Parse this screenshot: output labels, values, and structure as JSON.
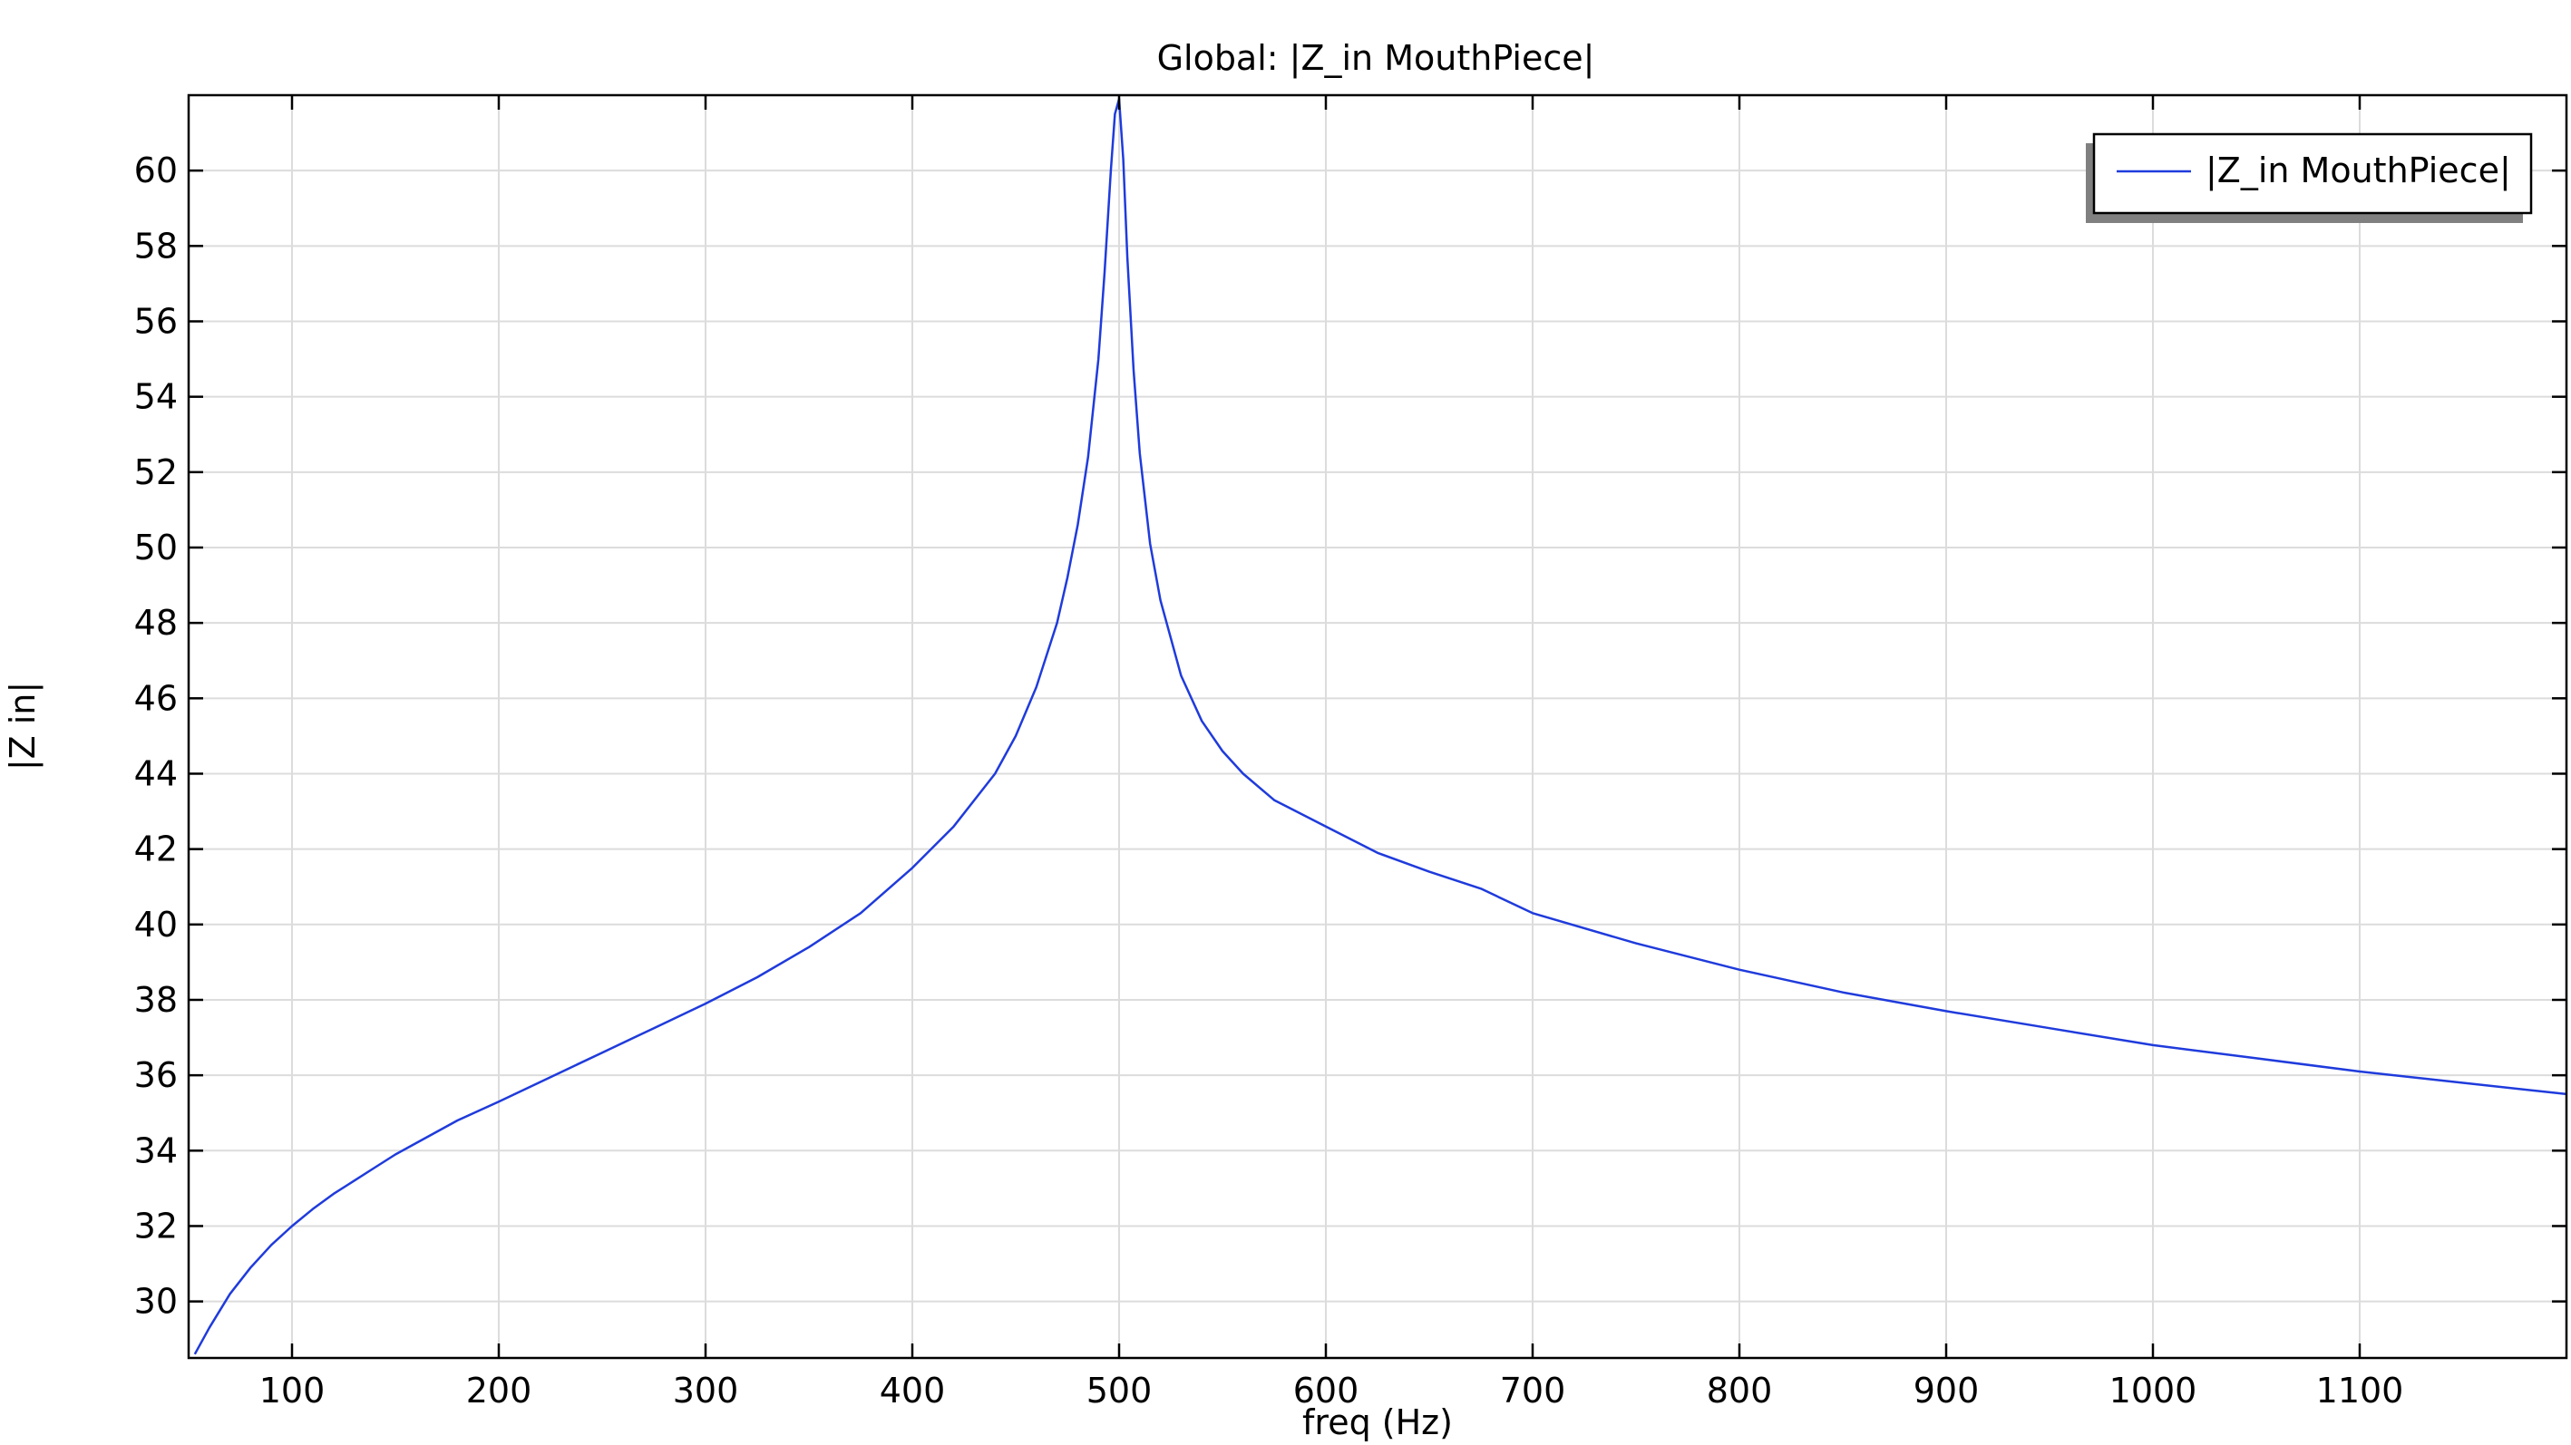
{
  "chart_data": {
    "type": "line",
    "title": "Global: |Z_in MouthPiece|",
    "xlabel": "freq (Hz)",
    "ylabel": "|Z in|",
    "xlim": [
      50,
      1200
    ],
    "ylim": [
      28.5,
      62
    ],
    "xticks": [
      100,
      200,
      300,
      400,
      500,
      600,
      700,
      800,
      900,
      1000,
      1100
    ],
    "yticks": [
      30,
      32,
      34,
      36,
      38,
      40,
      42,
      44,
      46,
      48,
      50,
      52,
      54,
      56,
      58,
      60
    ],
    "grid": true,
    "legend": {
      "position": "top-right"
    },
    "colors": {
      "line": "#1f3bdc",
      "grid": "#dcdcdc",
      "axis": "#000000"
    },
    "series": [
      {
        "name": "|Z_in MouthPiece|",
        "x": [
          53,
          60,
          70,
          80,
          90,
          100,
          110,
          120,
          130,
          140,
          150,
          160,
          170,
          180,
          190,
          200,
          225,
          250,
          275,
          300,
          325,
          350,
          375,
          400,
          420,
          440,
          450,
          460,
          470,
          475,
          480,
          485,
          490,
          493,
          496,
          498,
          500,
          502,
          504,
          507,
          510,
          515,
          520,
          530,
          540,
          550,
          560,
          575,
          600,
          625,
          650,
          675,
          700,
          750,
          800,
          850,
          900,
          950,
          1000,
          1050,
          1100,
          1150,
          1200
        ],
        "y": [
          28.6,
          29.3,
          30.2,
          30.9,
          31.5,
          32.0,
          32.45,
          32.85,
          33.2,
          33.55,
          33.9,
          34.2,
          34.5,
          34.8,
          35.05,
          35.3,
          35.95,
          36.6,
          37.25,
          37.9,
          38.6,
          39.4,
          40.3,
          41.5,
          42.6,
          44.0,
          45.0,
          46.3,
          48.0,
          49.2,
          50.6,
          52.4,
          55.0,
          57.3,
          60.0,
          61.5,
          61.9,
          60.3,
          57.7,
          54.7,
          52.5,
          50.1,
          48.6,
          46.6,
          45.4,
          44.6,
          44.0,
          43.3,
          42.6,
          41.9,
          41.4,
          40.95,
          40.3,
          39.5,
          38.8,
          38.2,
          37.7,
          37.25,
          36.8,
          36.45,
          36.1,
          35.8,
          35.5
        ]
      }
    ]
  }
}
